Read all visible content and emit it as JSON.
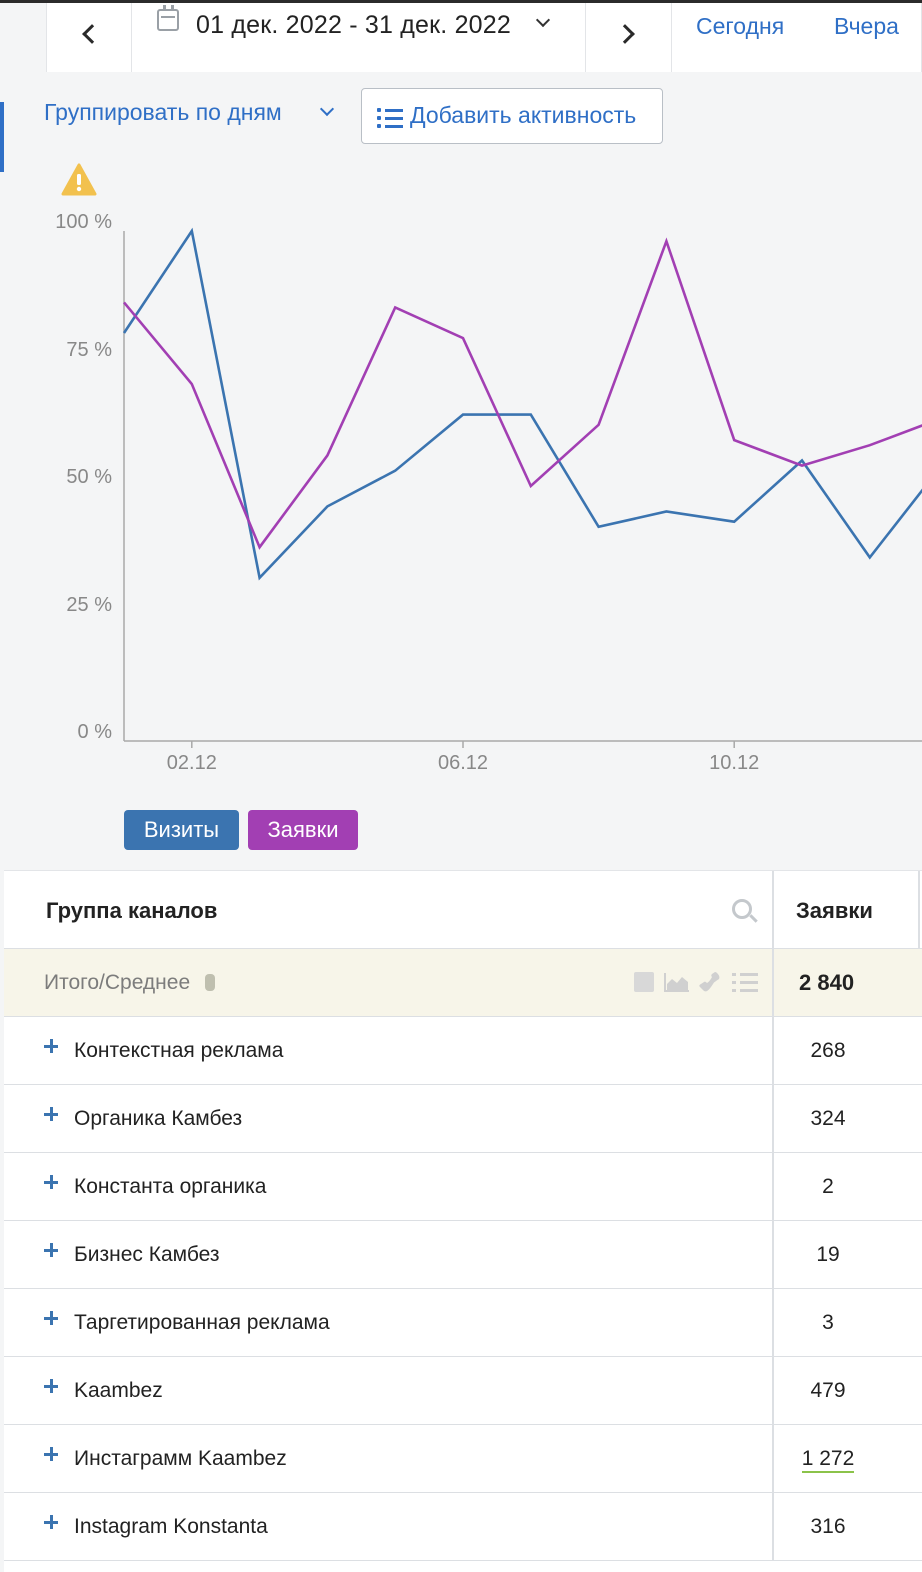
{
  "date_nav": {
    "range_label": "01 дек. 2022 - 31 дек. 2022",
    "quick_today": "Сегодня",
    "quick_yesterday": "Вчера"
  },
  "controls": {
    "group_by_label": "Группировать по дням",
    "add_activity_label": "Добавить активность"
  },
  "chart_data": {
    "type": "line",
    "x": [
      "01.12",
      "02.12",
      "03.12",
      "04.12",
      "05.12",
      "06.12",
      "07.12",
      "08.12",
      "09.12",
      "10.12",
      "11.12",
      "12.12",
      "13.12"
    ],
    "series": [
      {
        "name": "Визиты",
        "color": "#3b74b0",
        "values": [
          80,
          100,
          32,
          46,
          53,
          64,
          64,
          42,
          45,
          43,
          55,
          36,
          53
        ]
      },
      {
        "name": "Заявки",
        "color": "#a23fb3",
        "values": [
          86,
          70,
          38,
          56,
          85,
          79,
          50,
          62,
          98,
          59,
          54,
          58,
          63
        ]
      }
    ],
    "y_ticks": [
      "100 %",
      "75 %",
      "50 %",
      "25 %",
      "0 %"
    ],
    "x_ticks": [
      {
        "label": "02.12",
        "index": 1
      },
      {
        "label": "06.12",
        "index": 5
      },
      {
        "label": "10.12",
        "index": 9
      }
    ],
    "ylim": [
      0,
      100
    ],
    "grid": false,
    "legend": "bottom-left"
  },
  "legend": {
    "visits": "Визиты",
    "leads": "Заявки"
  },
  "table": {
    "col1_header": "Группа каналов",
    "col2_header": "Заявки",
    "total_label": "Итого/Среднее",
    "total_value": "2 840",
    "rows": [
      {
        "name": "Контекстная реклама",
        "value": "268"
      },
      {
        "name": "Органика Камбез",
        "value": "324"
      },
      {
        "name": "Константа органика",
        "value": "2"
      },
      {
        "name": "Бизнес Камбез",
        "value": "19"
      },
      {
        "name": "Таргетированная реклама",
        "value": "3"
      },
      {
        "name": "Kaambez",
        "value": "479"
      },
      {
        "name": "Инстаграмм Kaambez",
        "value": "1 272"
      },
      {
        "name": "Instagram Konstanta",
        "value": "316"
      }
    ]
  }
}
